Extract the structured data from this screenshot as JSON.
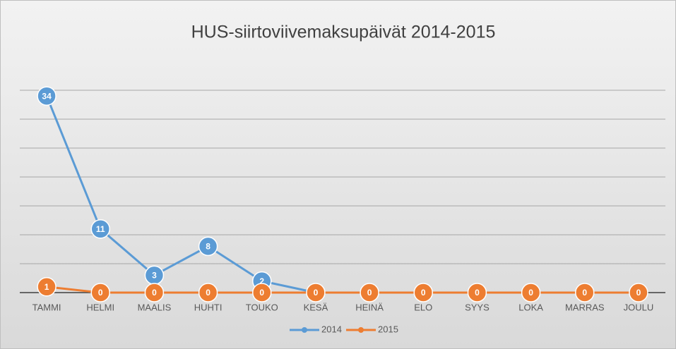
{
  "chart_data": {
    "type": "line",
    "title": "HUS-siirtoviivemaksupäivät 2014-2015",
    "categories": [
      "TAMMI",
      "HELMI",
      "MAALIS",
      "HUHTI",
      "TOUKO",
      "KESÄ",
      "HEINÄ",
      "ELO",
      "SYYS",
      "LOKA",
      "MARRAS",
      "JOULU"
    ],
    "series": [
      {
        "name": "2014",
        "color": "#5b9bd5",
        "values": [
          34,
          11,
          3,
          8,
          2,
          0,
          null,
          null,
          null,
          null,
          null,
          null
        ]
      },
      {
        "name": "2015",
        "color": "#ed7d31",
        "values": [
          1,
          0,
          0,
          0,
          0,
          0,
          0,
          0,
          0,
          0,
          0,
          0
        ]
      }
    ],
    "ylim": [
      0,
      35
    ],
    "yticks": [
      0,
      5,
      10,
      15,
      20,
      25,
      30,
      35
    ],
    "grid": true,
    "legend": "bottom"
  }
}
